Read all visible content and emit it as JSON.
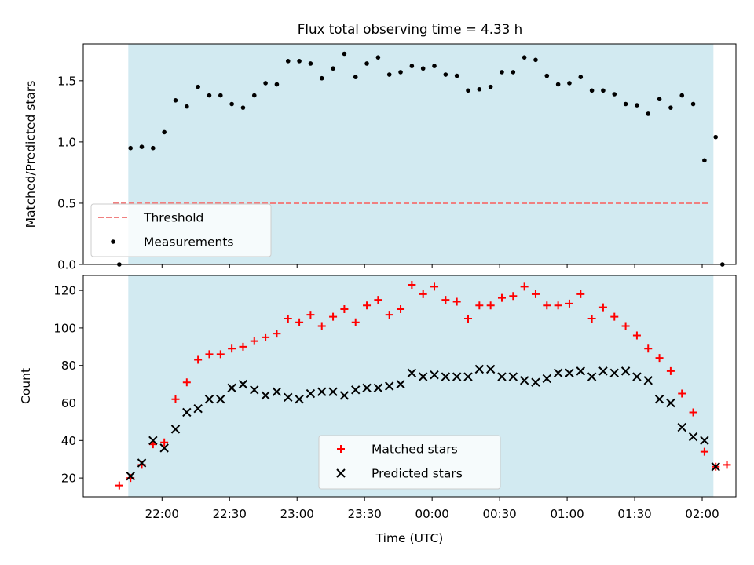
{
  "chart_data": [
    {
      "type": "scatter",
      "title": "Flux total observing time = 4.33 h",
      "ylabel": "Matched/Predicted stars",
      "ylim": [
        0,
        1.8
      ],
      "yticks": [
        "0.0",
        "0.5",
        "1.0",
        "1.5"
      ],
      "xlim": [
        "21:25",
        "02:15"
      ],
      "shaded_interval": [
        "21:45",
        "02:05"
      ],
      "shade_color": "#add8e6",
      "threshold": {
        "name": "Threshold",
        "value": 0.5,
        "color": "#f08080",
        "style": "dashed"
      },
      "series": [
        {
          "name": "Measurements",
          "color": "#000000",
          "marker": "dot",
          "points": [
            [
              "21:41",
              0.0
            ],
            [
              "21:46",
              0.95
            ],
            [
              "21:51",
              0.96
            ],
            [
              "21:56",
              0.95
            ],
            [
              "22:01",
              1.08
            ],
            [
              "22:06",
              1.34
            ],
            [
              "22:11",
              1.29
            ],
            [
              "22:16",
              1.45
            ],
            [
              "22:21",
              1.38
            ],
            [
              "22:26",
              1.38
            ],
            [
              "22:31",
              1.31
            ],
            [
              "22:36",
              1.28
            ],
            [
              "22:41",
              1.38
            ],
            [
              "22:46",
              1.48
            ],
            [
              "22:51",
              1.47
            ],
            [
              "22:56",
              1.66
            ],
            [
              "23:01",
              1.66
            ],
            [
              "23:06",
              1.64
            ],
            [
              "23:11",
              1.52
            ],
            [
              "23:16",
              1.6
            ],
            [
              "23:21",
              1.72
            ],
            [
              "23:26",
              1.53
            ],
            [
              "23:31",
              1.64
            ],
            [
              "23:36",
              1.69
            ],
            [
              "23:41",
              1.55
            ],
            [
              "23:46",
              1.57
            ],
            [
              "23:51",
              1.62
            ],
            [
              "23:56",
              1.6
            ],
            [
              "00:01",
              1.62
            ],
            [
              "00:06",
              1.55
            ],
            [
              "00:11",
              1.54
            ],
            [
              "00:16",
              1.42
            ],
            [
              "00:21",
              1.43
            ],
            [
              "00:26",
              1.45
            ],
            [
              "00:31",
              1.57
            ],
            [
              "00:36",
              1.57
            ],
            [
              "00:41",
              1.69
            ],
            [
              "00:46",
              1.67
            ],
            [
              "00:51",
              1.54
            ],
            [
              "00:56",
              1.47
            ],
            [
              "01:01",
              1.48
            ],
            [
              "01:06",
              1.53
            ],
            [
              "01:11",
              1.42
            ],
            [
              "01:16",
              1.42
            ],
            [
              "01:21",
              1.39
            ],
            [
              "01:26",
              1.31
            ],
            [
              "01:31",
              1.3
            ],
            [
              "01:36",
              1.23
            ],
            [
              "01:41",
              1.35
            ],
            [
              "01:46",
              1.28
            ],
            [
              "01:51",
              1.38
            ],
            [
              "01:56",
              1.31
            ],
            [
              "02:01",
              0.85
            ],
            [
              "02:06",
              1.04
            ],
            [
              "02:09",
              0.0
            ]
          ]
        }
      ],
      "legend": "lower-left"
    },
    {
      "type": "scatter",
      "xlabel": "Time (UTC)",
      "ylabel": "Count",
      "ylim": [
        10,
        128
      ],
      "yticks": [
        "20",
        "40",
        "60",
        "80",
        "100",
        "120"
      ],
      "xticks": [
        "22:00",
        "22:30",
        "23:00",
        "23:30",
        "00:00",
        "00:30",
        "01:00",
        "01:30",
        "02:00"
      ],
      "xlim": [
        "21:25",
        "02:15"
      ],
      "shaded_interval": [
        "21:45",
        "02:05"
      ],
      "series": [
        {
          "name": "Matched stars",
          "color": "#ff0000",
          "marker": "plus",
          "points": [
            [
              "21:41",
              16
            ],
            [
              "21:46",
              20
            ],
            [
              "21:51",
              27
            ],
            [
              "21:56",
              38
            ],
            [
              "22:01",
              39
            ],
            [
              "22:06",
              62
            ],
            [
              "22:11",
              71
            ],
            [
              "22:16",
              83
            ],
            [
              "22:21",
              86
            ],
            [
              "22:26",
              86
            ],
            [
              "22:31",
              89
            ],
            [
              "22:36",
              90
            ],
            [
              "22:41",
              93
            ],
            [
              "22:46",
              95
            ],
            [
              "22:51",
              97
            ],
            [
              "22:56",
              105
            ],
            [
              "23:01",
              103
            ],
            [
              "23:06",
              107
            ],
            [
              "23:11",
              101
            ],
            [
              "23:16",
              106
            ],
            [
              "23:21",
              110
            ],
            [
              "23:26",
              103
            ],
            [
              "23:31",
              112
            ],
            [
              "23:36",
              115
            ],
            [
              "23:41",
              107
            ],
            [
              "23:46",
              110
            ],
            [
              "23:51",
              123
            ],
            [
              "23:56",
              118
            ],
            [
              "00:01",
              122
            ],
            [
              "00:06",
              115
            ],
            [
              "00:11",
              114
            ],
            [
              "00:16",
              105
            ],
            [
              "00:21",
              112
            ],
            [
              "00:26",
              112
            ],
            [
              "00:31",
              116
            ],
            [
              "00:36",
              117
            ],
            [
              "00:41",
              122
            ],
            [
              "00:46",
              118
            ],
            [
              "00:51",
              112
            ],
            [
              "00:56",
              112
            ],
            [
              "01:01",
              113
            ],
            [
              "01:06",
              118
            ],
            [
              "01:11",
              105
            ],
            [
              "01:16",
              111
            ],
            [
              "01:21",
              106
            ],
            [
              "01:26",
              101
            ],
            [
              "01:31",
              96
            ],
            [
              "01:36",
              89
            ],
            [
              "01:41",
              84
            ],
            [
              "01:46",
              77
            ],
            [
              "01:51",
              65
            ],
            [
              "01:56",
              55
            ],
            [
              "02:01",
              34
            ],
            [
              "02:06",
              26
            ],
            [
              "02:11",
              27
            ]
          ]
        },
        {
          "name": "Predicted stars",
          "color": "#000000",
          "marker": "x",
          "points": [
            [
              "21:46",
              21
            ],
            [
              "21:51",
              28
            ],
            [
              "21:56",
              40
            ],
            [
              "22:01",
              36
            ],
            [
              "22:06",
              46
            ],
            [
              "22:11",
              55
            ],
            [
              "22:16",
              57
            ],
            [
              "22:21",
              62
            ],
            [
              "22:26",
              62
            ],
            [
              "22:31",
              68
            ],
            [
              "22:36",
              70
            ],
            [
              "22:41",
              67
            ],
            [
              "22:46",
              64
            ],
            [
              "22:51",
              66
            ],
            [
              "22:56",
              63
            ],
            [
              "23:01",
              62
            ],
            [
              "23:06",
              65
            ],
            [
              "23:11",
              66
            ],
            [
              "23:16",
              66
            ],
            [
              "23:21",
              64
            ],
            [
              "23:26",
              67
            ],
            [
              "23:31",
              68
            ],
            [
              "23:36",
              68
            ],
            [
              "23:41",
              69
            ],
            [
              "23:46",
              70
            ],
            [
              "23:51",
              76
            ],
            [
              "23:56",
              74
            ],
            [
              "00:01",
              75
            ],
            [
              "00:06",
              74
            ],
            [
              "00:11",
              74
            ],
            [
              "00:16",
              74
            ],
            [
              "00:21",
              78
            ],
            [
              "00:26",
              78
            ],
            [
              "00:31",
              74
            ],
            [
              "00:36",
              74
            ],
            [
              "00:41",
              72
            ],
            [
              "00:46",
              71
            ],
            [
              "00:51",
              73
            ],
            [
              "00:56",
              76
            ],
            [
              "01:01",
              76
            ],
            [
              "01:06",
              77
            ],
            [
              "01:11",
              74
            ],
            [
              "01:16",
              77
            ],
            [
              "01:21",
              76
            ],
            [
              "01:26",
              77
            ],
            [
              "01:31",
              74
            ],
            [
              "01:36",
              72
            ],
            [
              "01:41",
              62
            ],
            [
              "01:46",
              60
            ],
            [
              "01:51",
              47
            ],
            [
              "01:56",
              42
            ],
            [
              "02:01",
              40
            ],
            [
              "02:06",
              26
            ]
          ]
        }
      ],
      "legend": "lower-center"
    }
  ]
}
